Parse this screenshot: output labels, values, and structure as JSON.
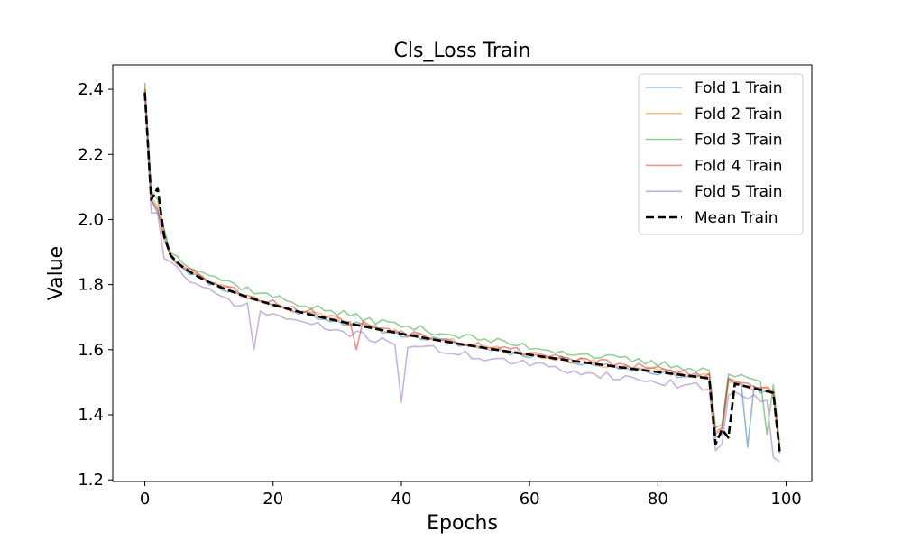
{
  "chart_data": {
    "type": "line",
    "title": "Cls_Loss Train",
    "xlabel": "Epochs",
    "ylabel": "Value",
    "xlim": [
      -5,
      104
    ],
    "ylim": [
      1.195,
      2.475
    ],
    "xticks": [
      0,
      20,
      40,
      60,
      80,
      100
    ],
    "yticks": [
      1.2,
      1.4,
      1.6,
      1.8,
      2.0,
      2.2,
      2.4
    ],
    "grid": false,
    "legend": "top-right",
    "x_range": [
      0,
      99
    ],
    "series": [
      {
        "name": "Fold 1 Train",
        "color": "#1f77b4",
        "dashed": false,
        "noise": 0.01,
        "bias": 0.0,
        "seed": 11,
        "points": [
          [
            0,
            2.39
          ],
          [
            1,
            2.06
          ],
          [
            2,
            2.02
          ],
          [
            3,
            1.97
          ],
          [
            89,
            1.33
          ],
          [
            90,
            1.34
          ],
          [
            94,
            1.3
          ],
          [
            99,
            1.28
          ]
        ]
      },
      {
        "name": "Fold 2 Train",
        "color": "#ff7f0e",
        "dashed": false,
        "noise": 0.01,
        "bias": 0.003,
        "seed": 23,
        "points": [
          [
            0,
            2.41
          ],
          [
            1,
            2.07
          ],
          [
            2,
            2.04
          ],
          [
            3,
            1.95
          ],
          [
            89,
            1.35
          ],
          [
            90,
            1.36
          ],
          [
            99,
            1.29
          ]
        ]
      },
      {
        "name": "Fold 3 Train",
        "color": "#2ca02c",
        "dashed": false,
        "noise": 0.011,
        "bias": 0.025,
        "seed": 37,
        "points": [
          [
            0,
            2.42
          ],
          [
            1,
            2.09
          ],
          [
            2,
            2.06
          ],
          [
            3,
            1.97
          ],
          [
            89,
            1.36
          ],
          [
            90,
            1.37
          ],
          [
            97,
            1.34
          ],
          [
            99,
            1.31
          ]
        ]
      },
      {
        "name": "Fold 4 Train",
        "color": "#d62728",
        "dashed": false,
        "noise": 0.011,
        "bias": 0.008,
        "seed": 53,
        "points": [
          [
            0,
            2.4
          ],
          [
            1,
            2.06
          ],
          [
            2,
            2.03
          ],
          [
            3,
            1.94
          ],
          [
            33,
            1.6
          ],
          [
            89,
            1.34
          ],
          [
            90,
            1.36
          ],
          [
            99,
            1.29
          ]
        ]
      },
      {
        "name": "Fold 5 Train",
        "color": "#9467bd",
        "dashed": false,
        "noise": 0.012,
        "bias": -0.03,
        "seed": 71,
        "points": [
          [
            0,
            2.38
          ],
          [
            1,
            2.02
          ],
          [
            2,
            2.02
          ],
          [
            3,
            1.88
          ],
          [
            17,
            1.6
          ],
          [
            40,
            1.44
          ],
          [
            89,
            1.29
          ],
          [
            90,
            1.31
          ],
          [
            98,
            1.27
          ],
          [
            99,
            1.255
          ]
        ]
      },
      {
        "name": "Mean Train",
        "color": "#000000",
        "dashed": true,
        "noise": 0.0,
        "bias": 0.0,
        "seed": 0,
        "points": [
          [
            0,
            2.39
          ],
          [
            1,
            2.06
          ],
          [
            3,
            1.95
          ],
          [
            89,
            1.31
          ],
          [
            90,
            1.355
          ],
          [
            91,
            1.33
          ],
          [
            99,
            1.285
          ]
        ]
      }
    ]
  }
}
